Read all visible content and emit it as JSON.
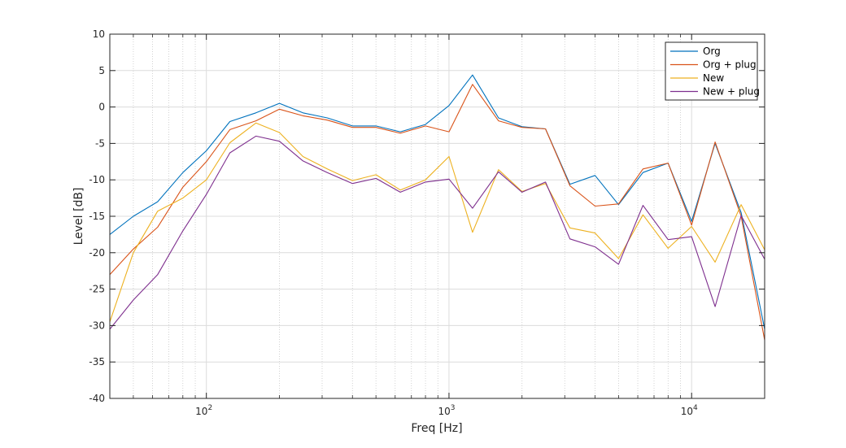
{
  "chart_data": {
    "type": "line",
    "xlabel": "Freq [Hz]",
    "ylabel": "Level [dB]",
    "xscale": "log",
    "xlim": [
      40,
      20000
    ],
    "ylim": [
      -40,
      10
    ],
    "yticks": [
      10,
      5,
      0,
      -5,
      -10,
      -15,
      -20,
      -25,
      -30,
      -35,
      -40
    ],
    "xticks": [
      {
        "value": 100,
        "base": "10",
        "exp": "2"
      },
      {
        "value": 1000,
        "base": "10",
        "exp": "3"
      },
      {
        "value": 10000,
        "base": "10",
        "exp": "4"
      }
    ],
    "grid": true,
    "legend_position": "top-right",
    "x": [
      40,
      50,
      63,
      80,
      100,
      125,
      160,
      200,
      250,
      315,
      400,
      500,
      630,
      800,
      1000,
      1250,
      1600,
      2000,
      2500,
      3150,
      4000,
      5000,
      6300,
      8000,
      10000,
      12500,
      16000,
      20000
    ],
    "series": [
      {
        "name": "Org",
        "color": "#0072BD",
        "values": [
          -17.5,
          -15.0,
          -13.0,
          -9.0,
          -6.0,
          -2.0,
          -0.8,
          0.5,
          -0.8,
          -1.5,
          -2.6,
          -2.6,
          -3.4,
          -2.4,
          0.2,
          4.4,
          -1.5,
          -2.7,
          -3.0,
          -10.6,
          -9.4,
          -13.4,
          -9.0,
          -7.7,
          -15.7,
          -5.0,
          -14.5,
          -30.5
        ]
      },
      {
        "name": "Org + plug",
        "color": "#D95319",
        "values": [
          -23.0,
          -19.5,
          -16.5,
          -11.0,
          -7.5,
          -3.1,
          -1.9,
          -0.3,
          -1.2,
          -1.8,
          -2.8,
          -2.8,
          -3.6,
          -2.6,
          -3.4,
          3.1,
          -1.9,
          -2.8,
          -3.0,
          -10.8,
          -13.6,
          -13.3,
          -8.5,
          -7.7,
          -16.2,
          -4.8,
          -15.0,
          -32.0
        ]
      },
      {
        "name": "New",
        "color": "#EDB120",
        "values": [
          -29.5,
          -20.0,
          -14.3,
          -12.5,
          -10.0,
          -4.9,
          -2.2,
          -3.5,
          -6.8,
          -8.5,
          -10.1,
          -9.3,
          -11.4,
          -10.0,
          -6.8,
          -17.2,
          -8.6,
          -11.6,
          -10.5,
          -16.6,
          -17.3,
          -20.8,
          -14.8,
          -19.4,
          -16.4,
          -21.3,
          -13.4,
          -19.6
        ]
      },
      {
        "name": "New + plug",
        "color": "#7E2F8E",
        "values": [
          -30.5,
          -26.5,
          -23.0,
          -17.0,
          -12.0,
          -6.3,
          -4.0,
          -4.7,
          -7.4,
          -9.0,
          -10.5,
          -9.8,
          -11.7,
          -10.3,
          -9.9,
          -13.9,
          -8.9,
          -11.7,
          -10.3,
          -18.1,
          -19.2,
          -21.6,
          -13.5,
          -18.2,
          -17.8,
          -27.4,
          -14.9,
          -20.9
        ]
      }
    ]
  }
}
